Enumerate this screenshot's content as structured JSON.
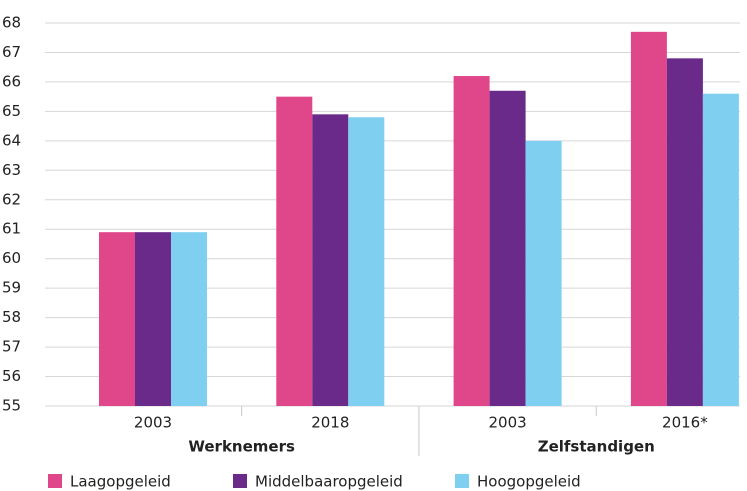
{
  "chart_data": {
    "type": "bar",
    "categories": [
      "2003",
      "2018",
      "2003",
      "2016*"
    ],
    "groups": [
      "Werknemers",
      "Zelfstandigen"
    ],
    "series": [
      {
        "name": "Laagopgeleid",
        "color": "#e0468a",
        "values": [
          60.9,
          65.5,
          66.2,
          67.7
        ]
      },
      {
        "name": "Middelbaaropgeleid",
        "color": "#6a2a8a",
        "values": [
          60.9,
          64.9,
          65.7,
          66.8
        ]
      },
      {
        "name": "Hoogopgeleid",
        "color": "#7fcff0",
        "values": [
          60.9,
          64.8,
          64.0,
          65.6
        ]
      }
    ],
    "ylim": [
      55,
      68
    ],
    "yticks": [
      55,
      56,
      57,
      58,
      59,
      60,
      61,
      62,
      63,
      64,
      65,
      66,
      67,
      68
    ],
    "grid": true
  }
}
